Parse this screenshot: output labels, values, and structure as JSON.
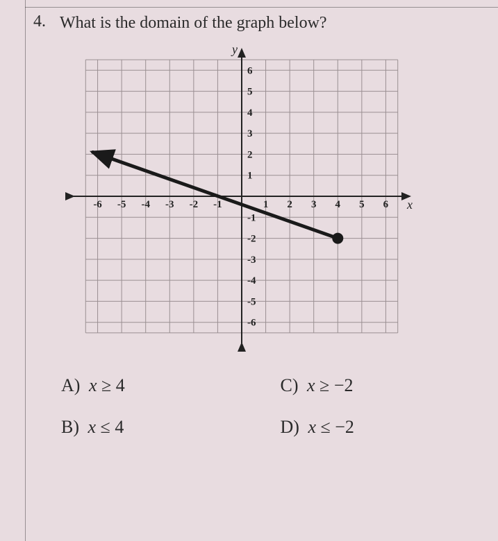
{
  "question": {
    "number": "4.",
    "text": "What is the domain of the graph below?"
  },
  "chart": {
    "type": "line",
    "xlim": [
      -7,
      7
    ],
    "ylim": [
      -7,
      7
    ],
    "xtick_min": -6,
    "xtick_max": 6,
    "ytick_min": -6,
    "ytick_max": 6,
    "tick_step": 1,
    "x_axis_label": "x",
    "y_axis_label": "y",
    "grid_color": "#9a8f92",
    "grid_width": 1,
    "axis_color": "#222222",
    "axis_width": 2,
    "background_color": "#e8dce0",
    "tick_font_size": 15,
    "tick_color": "#222222",
    "axis_label_font_size": 18,
    "line": {
      "x1": -6.2,
      "y1": 2.1,
      "x2": 4,
      "y2": -2,
      "color": "#1a1a1a",
      "width": 5,
      "end_arrow": true,
      "end_point_filled": true,
      "point_radius": 8
    }
  },
  "choices": {
    "A": {
      "label": "A)",
      "var": "x",
      "op": "≥",
      "val": "4"
    },
    "B": {
      "label": "B)",
      "var": "x",
      "op": "≤",
      "val": "4"
    },
    "C": {
      "label": "C)",
      "var": "x",
      "op": "≥",
      "val": "−2"
    },
    "D": {
      "label": "D)",
      "var": "x",
      "op": "≤",
      "val": "−2"
    }
  },
  "colors": {
    "page_bg": "#e8dce0",
    "text": "#2a2a2a"
  }
}
